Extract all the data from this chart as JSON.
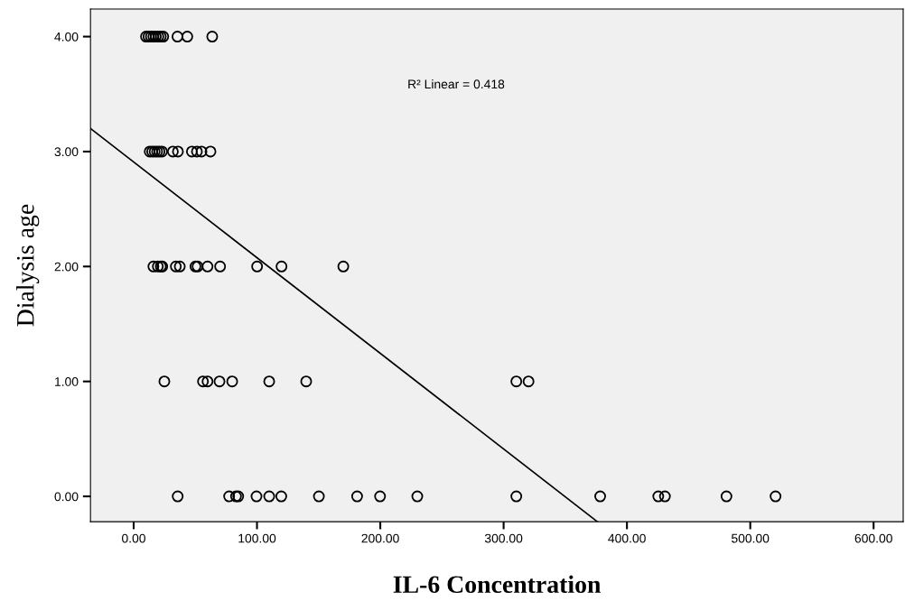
{
  "chart_data": {
    "type": "scatter",
    "xlabel": "IL-6 Concentration",
    "ylabel": "Dialysis age",
    "marker": "circle",
    "grid": false,
    "legend": false,
    "annotations": [
      "R² Linear = 0.418"
    ],
    "xlim": [
      -35,
      624
    ],
    "ylim": [
      -0.22,
      4.24
    ],
    "xticks": [
      {
        "value": 0,
        "label": "0.00"
      },
      {
        "value": 100,
        "label": "100.00"
      },
      {
        "value": 200,
        "label": "200.00"
      },
      {
        "value": 300,
        "label": "300.00"
      },
      {
        "value": 400,
        "label": "400.00"
      },
      {
        "value": 500,
        "label": "500.00"
      },
      {
        "value": 600,
        "label": "600.00"
      }
    ],
    "yticks": [
      {
        "value": 0,
        "label": "0.00"
      },
      {
        "value": 1,
        "label": "1.00"
      },
      {
        "value": 2,
        "label": "2.00"
      },
      {
        "value": 3,
        "label": "3.00"
      },
      {
        "value": 4,
        "label": "4.00"
      }
    ],
    "series": [
      {
        "color": "#000000",
        "x": [
          10,
          12,
          14,
          16,
          18,
          20,
          22,
          24,
          35.5,
          43.5,
          63.7,
          13,
          15,
          17,
          19,
          21,
          23,
          31.8,
          35.9,
          47.2,
          51.3,
          55,
          62.3,
          16,
          19.6,
          22,
          23.2,
          34.2,
          37.4,
          50.1,
          51.8,
          59.9,
          70.1,
          100.1,
          119.9,
          170,
          24.9,
          56.2,
          59.9,
          69.6,
          79.9,
          109.9,
          139.9,
          310.3,
          320.2,
          35.7,
          77.4,
          83,
          84.8,
          99.6,
          109.9,
          119.7,
          150.2,
          181.2,
          199.8,
          230,
          310.3,
          378.3,
          425.4,
          430.8,
          480.7,
          520.5
        ],
        "values": [
          4,
          4,
          4,
          4,
          4,
          4,
          4,
          4,
          4,
          4,
          4,
          3,
          3,
          3,
          3,
          3,
          3,
          3,
          3,
          3,
          3,
          3,
          3,
          2,
          2,
          2,
          2,
          2,
          2,
          2,
          2,
          2,
          2,
          2,
          2,
          2,
          1,
          1,
          1,
          1,
          1,
          1,
          1,
          1,
          1,
          0,
          0,
          0,
          0,
          0,
          0,
          0,
          0,
          0,
          0,
          0,
          0,
          0,
          0,
          0,
          0,
          0
        ]
      },
      {
        "type": "line",
        "color": "#000000",
        "marker": "none",
        "x": [
          -35,
          376
        ],
        "values": [
          3.2,
          -0.22
        ]
      }
    ]
  }
}
